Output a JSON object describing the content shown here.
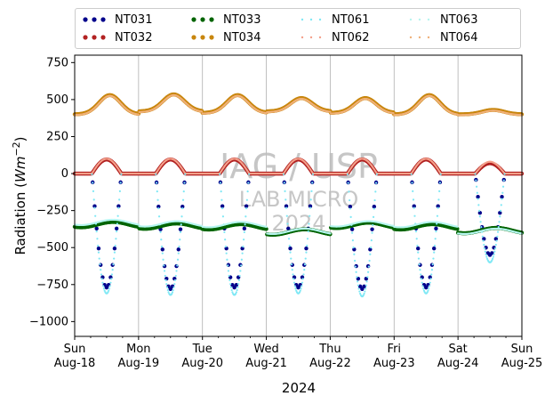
{
  "chart_data": {
    "type": "scatter",
    "title": "",
    "xlabel": "2024",
    "ylabel": "Radiation (Wm⁻²)",
    "ylim": [
      -1100,
      800
    ],
    "yticks": [
      750,
      500,
      250,
      0,
      -250,
      -500,
      -750,
      -1000
    ],
    "ytick_labels": [
      "750",
      "500",
      "250",
      "0",
      "−250",
      "−500",
      "−750",
      "−1000"
    ],
    "xlim_days": [
      0,
      7
    ],
    "x_ticks": [
      {
        "day": "Sun",
        "date": "Aug-18"
      },
      {
        "day": "Mon",
        "date": "Aug-19"
      },
      {
        "day": "Tue",
        "date": "Aug-20"
      },
      {
        "day": "Wed",
        "date": "Aug-21"
      },
      {
        "day": "Thu",
        "date": "Aug-22"
      },
      {
        "day": "Fri",
        "date": "Aug-23"
      },
      {
        "day": "Sat",
        "date": "Aug-24"
      },
      {
        "day": "Sun",
        "date": "Aug-25"
      }
    ],
    "grid": "vertical",
    "legend_position": "top",
    "series": [
      {
        "name": "NT031",
        "color": "#00008b",
        "style": "dots-large",
        "kind": "negative-diurnal",
        "daily_min": [
          -770,
          -780,
          -770,
          -770,
          -780,
          -770,
          -550
        ]
      },
      {
        "name": "NT032",
        "color": "#b22222",
        "style": "dots-large",
        "kind": "positive-diurnal",
        "baseline": 0,
        "daily_max": [
          95,
          95,
          95,
          95,
          95,
          95,
          70
        ]
      },
      {
        "name": "NT033",
        "color": "#006400",
        "style": "dots-large",
        "kind": "slow-wave",
        "daily_values": [
          -345,
          -355,
          -360,
          -395,
          -350,
          -360,
          -385
        ]
      },
      {
        "name": "NT034",
        "color": "#c8860d",
        "style": "dots-large",
        "kind": "positive-wave",
        "baseline": [
          400,
          420,
          410,
          420,
          410,
          400,
          400
        ],
        "daily_max": [
          530,
          535,
          530,
          510,
          510,
          530,
          430
        ]
      },
      {
        "name": "NT061",
        "color": "#7fe8f5",
        "style": "dots-small",
        "kind": "negative-diurnal",
        "daily_min": [
          -810,
          -820,
          -820,
          -810,
          -830,
          -810,
          -600
        ]
      },
      {
        "name": "NT062",
        "color": "#f4a08a",
        "style": "dots-small",
        "kind": "positive-diurnal",
        "baseline": 0,
        "daily_max": [
          100,
          100,
          100,
          100,
          100,
          100,
          80
        ]
      },
      {
        "name": "NT063",
        "color": "#b6f5f0",
        "style": "dots-small",
        "kind": "slow-wave",
        "daily_values": [
          -330,
          -340,
          -345,
          -390,
          -340,
          -345,
          -390
        ]
      },
      {
        "name": "NT064",
        "color": "#f0b078",
        "style": "dots-small",
        "kind": "positive-wave",
        "baseline": [
          395,
          415,
          405,
          415,
          405,
          395,
          395
        ],
        "daily_max": [
          525,
          530,
          525,
          505,
          505,
          525,
          425
        ]
      }
    ],
    "watermark": [
      "IAG / USP",
      "LAB MICRO",
      "2024"
    ]
  }
}
